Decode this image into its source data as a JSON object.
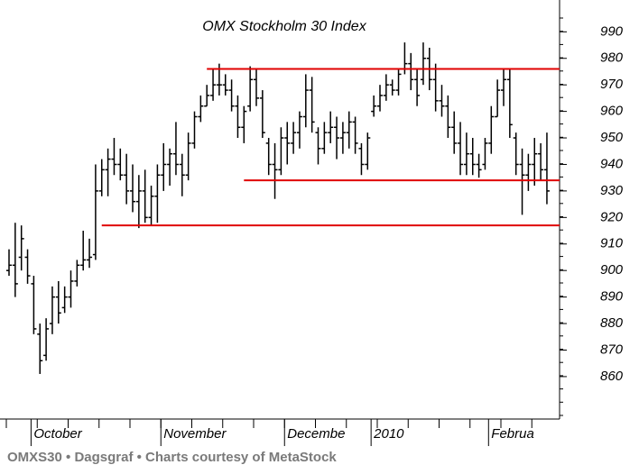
{
  "chart_data": {
    "type": "ohlc",
    "title": "OMX Stockholm 30 Index",
    "footer": "OMXS30 • Dagsgraf • Charts courtesy of MetaStock",
    "color": "#000000",
    "line_color": "#e00000",
    "ylim": [
      844,
      1002
    ],
    "yticks": [
      860,
      870,
      880,
      890,
      900,
      910,
      920,
      930,
      940,
      950,
      960,
      970,
      980,
      990
    ],
    "month_labels": [
      {
        "label": "October",
        "index": 4
      },
      {
        "label": "November",
        "index": 25
      },
      {
        "label": "Decembe",
        "index": 45
      },
      {
        "label": "2010",
        "index": 59
      },
      {
        "label": "Februa",
        "index": 78
      }
    ],
    "hlines": [
      {
        "value": 976,
        "from": 32
      },
      {
        "value": 934,
        "from": 38
      },
      {
        "value": 917,
        "from": 15
      }
    ],
    "high": [
      908,
      918,
      917,
      908,
      898,
      880,
      882,
      894,
      896,
      894,
      900,
      904,
      915,
      912,
      940,
      942,
      946,
      950,
      946,
      944,
      940,
      936,
      938,
      932,
      940,
      948,
      946,
      956,
      944,
      952,
      960,
      966,
      970,
      976,
      978,
      974,
      972,
      966,
      962,
      977,
      976,
      968,
      950,
      948,
      954,
      956,
      956,
      960,
      974,
      973,
      954,
      956,
      960,
      958,
      956,
      960,
      958,
      948,
      952,
      966,
      970,
      974,
      972,
      976,
      986,
      982,
      976,
      986,
      984,
      978,
      970,
      966,
      960,
      956,
      952,
      950,
      944,
      950,
      962,
      972,
      976,
      976,
      952,
      946,
      944,
      950,
      948,
      952
    ],
    "low": [
      898,
      890,
      900,
      895,
      876,
      861,
      866,
      876,
      880,
      884,
      886,
      894,
      900,
      901,
      904,
      928,
      928,
      936,
      934,
      925,
      922,
      916,
      918,
      917,
      918,
      930,
      932,
      936,
      928,
      934,
      946,
      956,
      962,
      964,
      966,
      966,
      960,
      950,
      948,
      960,
      962,
      950,
      936,
      927,
      936,
      940,
      944,
      946,
      954,
      952,
      940,
      944,
      948,
      942,
      944,
      946,
      944,
      936,
      938,
      958,
      960,
      964,
      966,
      966,
      974,
      968,
      962,
      970,
      968,
      960,
      958,
      950,
      944,
      936,
      936,
      936,
      935,
      938,
      944,
      958,
      962,
      950,
      936,
      921,
      930,
      932,
      934,
      925
    ],
    "open": [
      900,
      902,
      905,
      905,
      895,
      876,
      868,
      880,
      890,
      886,
      890,
      896,
      902,
      904,
      906,
      930,
      938,
      942,
      940,
      936,
      930,
      926,
      930,
      920,
      928,
      936,
      940,
      944,
      940,
      936,
      948,
      958,
      962,
      966,
      970,
      970,
      968,
      962,
      954,
      962,
      972,
      965,
      948,
      940,
      938,
      950,
      948,
      952,
      958,
      968,
      952,
      946,
      952,
      954,
      950,
      952,
      956,
      946,
      940,
      960,
      962,
      966,
      970,
      968,
      976,
      978,
      972,
      972,
      980,
      972,
      964,
      962,
      954,
      948,
      940,
      944,
      940,
      940,
      948,
      958,
      968,
      972,
      950,
      940,
      936,
      940,
      944,
      938
    ],
    "close": [
      902,
      895,
      912,
      898,
      878,
      866,
      878,
      890,
      884,
      890,
      896,
      902,
      904,
      905,
      930,
      938,
      942,
      940,
      936,
      930,
      926,
      930,
      920,
      928,
      936,
      940,
      944,
      940,
      936,
      948,
      958,
      962,
      966,
      970,
      970,
      968,
      962,
      954,
      960,
      972,
      965,
      952,
      940,
      938,
      950,
      948,
      952,
      958,
      968,
      956,
      946,
      952,
      954,
      950,
      952,
      956,
      948,
      940,
      950,
      962,
      966,
      970,
      968,
      974,
      978,
      972,
      966,
      980,
      972,
      964,
      962,
      954,
      948,
      940,
      944,
      940,
      938,
      948,
      958,
      968,
      972,
      955,
      940,
      936,
      940,
      944,
      938,
      930
    ]
  }
}
